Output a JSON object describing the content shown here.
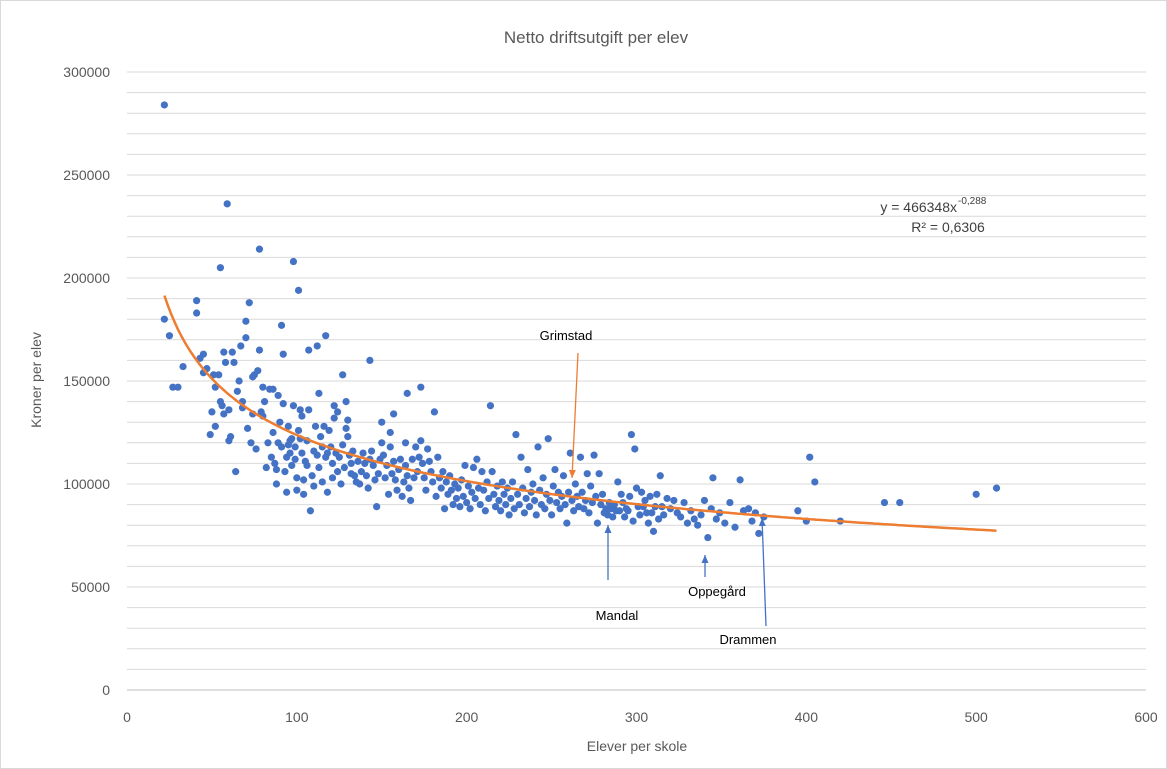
{
  "chart_data": {
    "type": "scatter",
    "title": "Netto driftsutgift per elev",
    "xlabel": "Elever per skole",
    "ylabel": "Kroner per elev",
    "xlim": [
      0,
      600
    ],
    "ylim": [
      0,
      300000
    ],
    "x_ticks": [
      "0",
      "100",
      "200",
      "300",
      "400",
      "500",
      "600"
    ],
    "y_ticks": [
      "0",
      "50000",
      "100000",
      "150000",
      "200000",
      "250000",
      "300000"
    ],
    "grid": true,
    "point_color": "#4472c4",
    "trendline": {
      "type": "power",
      "a": 466348,
      "b": -0.288,
      "x_range": [
        22,
        512
      ],
      "color": "#ed7d31",
      "equation_prefix": "y = 466348x",
      "equation_exponent": "-0,288",
      "r2_label": "R² = 0,6306"
    },
    "annotations": [
      {
        "label": "Grimstad",
        "x": 263,
        "y": 94000,
        "color": "#ed7d31"
      },
      {
        "label": "Mandal",
        "x": 284,
        "y": 87000,
        "color": "#4472c4"
      },
      {
        "label": "Oppegård",
        "x": 341,
        "y": 74000,
        "color": "#4472c4"
      },
      {
        "label": "Drammen",
        "x": 373,
        "y": 83000,
        "color": "#4472c4"
      }
    ],
    "points": [
      [
        22,
        284000
      ],
      [
        22,
        180000
      ],
      [
        25,
        172000
      ],
      [
        27,
        147000
      ],
      [
        30,
        147000
      ],
      [
        33,
        157000
      ],
      [
        41,
        189000
      ],
      [
        41,
        183000
      ],
      [
        43,
        161000
      ],
      [
        45,
        163000
      ],
      [
        45,
        154000
      ],
      [
        47,
        156000
      ],
      [
        49,
        124000
      ],
      [
        50,
        135000
      ],
      [
        51,
        153000
      ],
      [
        52,
        128000
      ],
      [
        52,
        147000
      ],
      [
        54,
        153000
      ],
      [
        55,
        205000
      ],
      [
        55,
        140000
      ],
      [
        56,
        138000
      ],
      [
        57,
        164000
      ],
      [
        57,
        134000
      ],
      [
        58,
        159000
      ],
      [
        59,
        236000
      ],
      [
        60,
        136000
      ],
      [
        60,
        121000
      ],
      [
        61,
        123000
      ],
      [
        62,
        164000
      ],
      [
        63,
        159000
      ],
      [
        64,
        106000
      ],
      [
        65,
        145000
      ],
      [
        66,
        150000
      ],
      [
        67,
        167000
      ],
      [
        68,
        140000
      ],
      [
        68,
        137000
      ],
      [
        70,
        179000
      ],
      [
        70,
        171000
      ],
      [
        71,
        127000
      ],
      [
        72,
        188000
      ],
      [
        73,
        120000
      ],
      [
        74,
        134000
      ],
      [
        74,
        152000
      ],
      [
        75,
        153000
      ],
      [
        76,
        117000
      ],
      [
        77,
        155000
      ],
      [
        78,
        214000
      ],
      [
        78,
        165000
      ],
      [
        79,
        135000
      ],
      [
        80,
        147000
      ],
      [
        80,
        133000
      ],
      [
        81,
        140000
      ],
      [
        82,
        108000
      ],
      [
        83,
        120000
      ],
      [
        84,
        146000
      ],
      [
        85,
        113000
      ],
      [
        86,
        146000
      ],
      [
        86,
        125000
      ],
      [
        87,
        110000
      ],
      [
        88,
        107000
      ],
      [
        88,
        100000
      ],
      [
        89,
        120000
      ],
      [
        89,
        143000
      ],
      [
        90,
        130000
      ],
      [
        91,
        177000
      ],
      [
        91,
        118000
      ],
      [
        92,
        163000
      ],
      [
        92,
        139000
      ],
      [
        93,
        106000
      ],
      [
        94,
        113000
      ],
      [
        94,
        96000
      ],
      [
        95,
        128000
      ],
      [
        95,
        119000
      ],
      [
        96,
        121000
      ],
      [
        96,
        115000
      ],
      [
        97,
        122000
      ],
      [
        97,
        109000
      ],
      [
        98,
        208000
      ],
      [
        98,
        138000
      ],
      [
        99,
        118000
      ],
      [
        99,
        112000
      ],
      [
        100,
        103000
      ],
      [
        100,
        97000
      ],
      [
        101,
        194000
      ],
      [
        101,
        126000
      ],
      [
        102,
        136000
      ],
      [
        102,
        122000
      ],
      [
        103,
        133000
      ],
      [
        103,
        115000
      ],
      [
        104,
        102000
      ],
      [
        104,
        95000
      ],
      [
        105,
        111000
      ],
      [
        106,
        121000
      ],
      [
        106,
        109000
      ],
      [
        107,
        136000
      ],
      [
        107,
        165000
      ],
      [
        108,
        87000
      ],
      [
        109,
        104000
      ],
      [
        110,
        116000
      ],
      [
        110,
        99000
      ],
      [
        111,
        128000
      ],
      [
        112,
        167000
      ],
      [
        112,
        114000
      ],
      [
        113,
        144000
      ],
      [
        113,
        108000
      ],
      [
        114,
        123000
      ],
      [
        115,
        118000
      ],
      [
        115,
        101000
      ],
      [
        116,
        128000
      ],
      [
        117,
        172000
      ],
      [
        117,
        113000
      ],
      [
        118,
        96000
      ],
      [
        118,
        115000
      ],
      [
        119,
        126000
      ],
      [
        120,
        118000
      ],
      [
        121,
        103000
      ],
      [
        121,
        110000
      ],
      [
        122,
        132000
      ],
      [
        122,
        138000
      ],
      [
        123,
        115000
      ],
      [
        124,
        135000
      ],
      [
        124,
        106000
      ],
      [
        125,
        113000
      ],
      [
        126,
        100000
      ],
      [
        127,
        153000
      ],
      [
        127,
        119000
      ],
      [
        128,
        108000
      ],
      [
        129,
        140000
      ],
      [
        129,
        127000
      ],
      [
        130,
        131000
      ],
      [
        130,
        123000
      ],
      [
        131,
        114000
      ],
      [
        132,
        110000
      ],
      [
        132,
        105000
      ],
      [
        133,
        116000
      ],
      [
        134,
        104000
      ],
      [
        135,
        101000
      ],
      [
        136,
        111000
      ],
      [
        137,
        100000
      ],
      [
        138,
        106000
      ],
      [
        139,
        115000
      ],
      [
        140,
        110000
      ],
      [
        141,
        104000
      ],
      [
        142,
        98000
      ],
      [
        143,
        160000
      ],
      [
        143,
        112000
      ],
      [
        144,
        116000
      ],
      [
        145,
        109000
      ],
      [
        146,
        102000
      ],
      [
        147,
        89000
      ],
      [
        148,
        105000
      ],
      [
        149,
        112000
      ],
      [
        150,
        130000
      ],
      [
        150,
        120000
      ],
      [
        151,
        114000
      ],
      [
        152,
        103000
      ],
      [
        153,
        109000
      ],
      [
        154,
        95000
      ],
      [
        155,
        118000
      ],
      [
        155,
        125000
      ],
      [
        156,
        105000
      ],
      [
        157,
        134000
      ],
      [
        157,
        111000
      ],
      [
        158,
        102000
      ],
      [
        159,
        97000
      ],
      [
        160,
        107000
      ],
      [
        161,
        112000
      ],
      [
        162,
        94000
      ],
      [
        163,
        101000
      ],
      [
        164,
        120000
      ],
      [
        164,
        109000
      ],
      [
        165,
        144000
      ],
      [
        165,
        104000
      ],
      [
        166,
        98000
      ],
      [
        167,
        92000
      ],
      [
        168,
        112000
      ],
      [
        169,
        103000
      ],
      [
        170,
        118000
      ],
      [
        171,
        106000
      ],
      [
        172,
        113000
      ],
      [
        173,
        147000
      ],
      [
        173,
        121000
      ],
      [
        174,
        110000
      ],
      [
        175,
        103000
      ],
      [
        176,
        97000
      ],
      [
        177,
        117000
      ],
      [
        178,
        111000
      ],
      [
        179,
        106000
      ],
      [
        180,
        101000
      ],
      [
        181,
        135000
      ],
      [
        182,
        94000
      ],
      [
        183,
        113000
      ],
      [
        184,
        103000
      ],
      [
        185,
        98000
      ],
      [
        186,
        106000
      ],
      [
        187,
        88000
      ],
      [
        188,
        101000
      ],
      [
        189,
        95000
      ],
      [
        190,
        104000
      ],
      [
        191,
        97000
      ],
      [
        192,
        90000
      ],
      [
        193,
        100000
      ],
      [
        194,
        93000
      ],
      [
        195,
        98000
      ],
      [
        196,
        89000
      ],
      [
        197,
        102000
      ],
      [
        198,
        94000
      ],
      [
        199,
        109000
      ],
      [
        200,
        91000
      ],
      [
        201,
        99000
      ],
      [
        202,
        88000
      ],
      [
        203,
        96000
      ],
      [
        204,
        108000
      ],
      [
        205,
        93000
      ],
      [
        206,
        112000
      ],
      [
        207,
        98000
      ],
      [
        208,
        90000
      ],
      [
        209,
        106000
      ],
      [
        210,
        97000
      ],
      [
        211,
        87000
      ],
      [
        212,
        101000
      ],
      [
        213,
        93000
      ],
      [
        214,
        138000
      ],
      [
        215,
        106000
      ],
      [
        216,
        95000
      ],
      [
        217,
        89000
      ],
      [
        218,
        99000
      ],
      [
        219,
        92000
      ],
      [
        220,
        87000
      ],
      [
        221,
        101000
      ],
      [
        222,
        95000
      ],
      [
        223,
        90000
      ],
      [
        224,
        98000
      ],
      [
        225,
        85000
      ],
      [
        226,
        93000
      ],
      [
        227,
        101000
      ],
      [
        228,
        88000
      ],
      [
        229,
        124000
      ],
      [
        230,
        95000
      ],
      [
        231,
        90000
      ],
      [
        232,
        113000
      ],
      [
        233,
        98000
      ],
      [
        234,
        86000
      ],
      [
        235,
        93000
      ],
      [
        236,
        107000
      ],
      [
        237,
        89000
      ],
      [
        238,
        96000
      ],
      [
        239,
        100000
      ],
      [
        240,
        92000
      ],
      [
        241,
        85000
      ],
      [
        242,
        118000
      ],
      [
        243,
        97000
      ],
      [
        244,
        90000
      ],
      [
        245,
        103000
      ],
      [
        246,
        88000
      ],
      [
        247,
        95000
      ],
      [
        248,
        122000
      ],
      [
        249,
        92000
      ],
      [
        250,
        85000
      ],
      [
        251,
        99000
      ],
      [
        252,
        107000
      ],
      [
        253,
        91000
      ],
      [
        254,
        96000
      ],
      [
        255,
        88000
      ],
      [
        256,
        94000
      ],
      [
        257,
        104000
      ],
      [
        258,
        90000
      ],
      [
        259,
        81000
      ],
      [
        260,
        96000
      ],
      [
        261,
        115000
      ],
      [
        262,
        92000
      ],
      [
        263,
        87000
      ],
      [
        264,
        100000
      ],
      [
        265,
        94000
      ],
      [
        266,
        89000
      ],
      [
        267,
        113000
      ],
      [
        268,
        96000
      ],
      [
        269,
        88000
      ],
      [
        270,
        92000
      ],
      [
        271,
        105000
      ],
      [
        272,
        86000
      ],
      [
        273,
        99000
      ],
      [
        274,
        91000
      ],
      [
        275,
        114000
      ],
      [
        276,
        94000
      ],
      [
        277,
        81000
      ],
      [
        278,
        105000
      ],
      [
        279,
        90000
      ],
      [
        280,
        95000
      ],
      [
        281,
        86000
      ],
      [
        282,
        88000
      ],
      [
        283,
        85000
      ],
      [
        284,
        91000
      ],
      [
        285,
        88000
      ],
      [
        286,
        84000
      ],
      [
        287,
        90000
      ],
      [
        288,
        87000
      ],
      [
        289,
        101000
      ],
      [
        290,
        87000
      ],
      [
        291,
        95000
      ],
      [
        292,
        91000
      ],
      [
        293,
        84000
      ],
      [
        294,
        88000
      ],
      [
        295,
        87000
      ],
      [
        296,
        94000
      ],
      [
        297,
        124000
      ],
      [
        298,
        82000
      ],
      [
        299,
        117000
      ],
      [
        300,
        98000
      ],
      [
        301,
        89000
      ],
      [
        302,
        85000
      ],
      [
        303,
        96000
      ],
      [
        304,
        89000
      ],
      [
        305,
        92000
      ],
      [
        306,
        86000
      ],
      [
        307,
        81000
      ],
      [
        308,
        94000
      ],
      [
        309,
        86000
      ],
      [
        310,
        77000
      ],
      [
        311,
        89000
      ],
      [
        312,
        95000
      ],
      [
        313,
        83000
      ],
      [
        314,
        104000
      ],
      [
        315,
        89000
      ],
      [
        316,
        85000
      ],
      [
        318,
        93000
      ],
      [
        320,
        88000
      ],
      [
        322,
        92000
      ],
      [
        324,
        86000
      ],
      [
        326,
        84000
      ],
      [
        328,
        91000
      ],
      [
        330,
        81000
      ],
      [
        332,
        87000
      ],
      [
        334,
        83000
      ],
      [
        336,
        80000
      ],
      [
        338,
        85000
      ],
      [
        340,
        92000
      ],
      [
        342,
        74000
      ],
      [
        344,
        88000
      ],
      [
        345,
        103000
      ],
      [
        347,
        83000
      ],
      [
        349,
        86000
      ],
      [
        352,
        81000
      ],
      [
        355,
        91000
      ],
      [
        358,
        79000
      ],
      [
        361,
        102000
      ],
      [
        363,
        87000
      ],
      [
        366,
        88000
      ],
      [
        368,
        82000
      ],
      [
        370,
        86000
      ],
      [
        372,
        76000
      ],
      [
        375,
        84000
      ],
      [
        395,
        87000
      ],
      [
        400,
        82000
      ],
      [
        402,
        113000
      ],
      [
        405,
        101000
      ],
      [
        420,
        82000
      ],
      [
        446,
        91000
      ],
      [
        455,
        91000
      ],
      [
        500,
        95000
      ],
      [
        512,
        98000
      ]
    ]
  }
}
